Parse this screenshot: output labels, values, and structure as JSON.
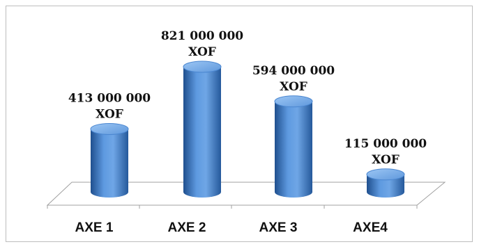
{
  "chart_data": {
    "type": "bar",
    "style": "3d-cylinder",
    "categories": [
      "AXE 1",
      "AXE 2",
      "AXE 3",
      "AXE4"
    ],
    "values": [
      413000000,
      821000000,
      594000000,
      115000000
    ],
    "data_labels": [
      [
        "413 000 000",
        "XOF"
      ],
      [
        "821 000 000",
        "XOF"
      ],
      [
        "594 000 000",
        "XOF"
      ],
      [
        "115 000 000",
        "XOF"
      ]
    ],
    "title": "",
    "xlabel": "",
    "ylabel": "",
    "ylim": [
      0,
      821000000
    ],
    "grid": false,
    "legend": "none",
    "colors": {
      "bar": "#4a86d0",
      "bar_dark": "#1f4f8e",
      "bar_light": "#8fbcf0",
      "floor_line": "#a0a0a0"
    }
  }
}
